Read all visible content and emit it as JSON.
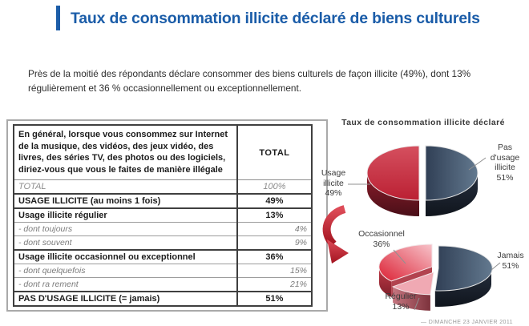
{
  "title": "Taux de consommation illicite déclaré de biens culturels",
  "intro": "Près de la moitié des répondants déclare consommer des biens culturels de façon illicite (49%), dont 13% régulièrement et 36 % occasionnellement ou exceptionnellement.",
  "table": {
    "header": {
      "question": "En général, lorsque vous consommez sur Internet de la musique, des vidéos, des jeux vidéo, des livres, des séries TV, des photos ou des logiciels, diriez-vous que vous le faites de manière illégale",
      "total_label": "TOTAL"
    },
    "rows": [
      {
        "label": "TOTAL",
        "value": "100%",
        "type": "totalrow"
      },
      {
        "label": "USAGE ILLICITE (au moins 1 fois)",
        "value": "49%",
        "type": "main"
      },
      {
        "label": "Usage illicite régulier",
        "value": "13%",
        "type": "main"
      },
      {
        "label": "- dont toujours",
        "value": "4%",
        "type": "sub"
      },
      {
        "label": "- dont souvent",
        "value": "9%",
        "type": "sub"
      },
      {
        "label": "Usage illicite occasionnel ou exceptionnel",
        "value": "36%",
        "type": "main"
      },
      {
        "label": "- dont quelquefois",
        "value": "15%",
        "type": "sub"
      },
      {
        "label": "- dont ra rement",
        "value": "21%",
        "type": "sub"
      },
      {
        "label": "PAS D'USAGE ILLICITE (= jamais)",
        "value": "51%",
        "type": "main"
      }
    ]
  },
  "chart_data": [
    {
      "type": "pie",
      "title": "Taux de consommation illicite déclaré",
      "labels": [
        "Usage illicite",
        "Pas d'usage illicite"
      ],
      "values": [
        49,
        51
      ],
      "colors": [
        "#c82a3d",
        "#3d4f63"
      ],
      "style": "3d-exploded",
      "legend_position": "callout-labels"
    },
    {
      "type": "pie",
      "title": "",
      "labels": [
        "Occasionnel",
        "Régulier",
        "Jamais"
      ],
      "values": [
        36,
        13,
        51
      ],
      "colors": [
        "#e04a5c",
        "#f0a9b3",
        "#3d4f63"
      ],
      "style": "3d-exploded",
      "legend_position": "callout-labels"
    }
  ],
  "callouts": {
    "chart_title": "Taux de consommation  illicite déclaré",
    "usage": "Usage\nillicite\n49%",
    "pas": "Pas\nd'usage\nillicite\n51%",
    "occ": "Occasionnel\n36%",
    "jamais": "Jamais\n51%",
    "reg": "Régulier\n13%"
  },
  "footer": "—  DIMANCHE 23 JANVIER 2011",
  "colors": {
    "title_blue": "#1a5ca8",
    "pie_red": "#c82a3d",
    "pie_slate": "#3d4f63",
    "pie_pink": "#f0a9b3",
    "arrow_red": "#c32232"
  }
}
